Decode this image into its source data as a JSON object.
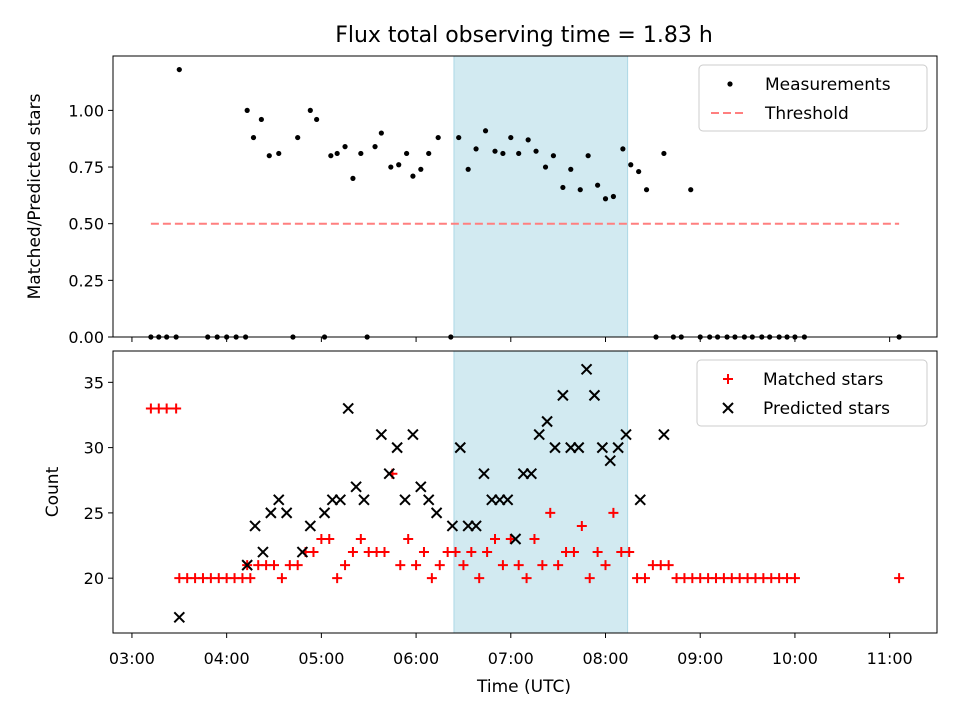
{
  "chart_data": {
    "title": "Flux total observing time = 1.83 h",
    "shaded_region": {
      "start": "06:24",
      "end": "08:14",
      "color": "#add8e6"
    },
    "x_axis": {
      "label": "Time (UTC)",
      "unit": "HH:MM UTC",
      "range": [
        "02:48",
        "11:30"
      ],
      "ticks": [
        "03:00",
        "04:00",
        "05:00",
        "06:00",
        "07:00",
        "08:00",
        "09:00",
        "10:00",
        "11:00"
      ]
    },
    "panels": [
      {
        "type": "scatter",
        "ylabel": "Matched/Predicted stars",
        "ylim": [
          0,
          1.24
        ],
        "yticks": [
          "0.00",
          "0.25",
          "0.50",
          "0.75",
          "1.00"
        ],
        "legend_position": "upper right",
        "legend": [
          {
            "label": "Measurements",
            "marker": "dot",
            "color": "#000000"
          },
          {
            "label": "Threshold",
            "marker": "dashed-line",
            "color": "#ff7f7f"
          }
        ],
        "threshold": {
          "label": "Threshold",
          "value": 0.5,
          "x_start": "03:12",
          "x_end": "11:06"
        },
        "series": [
          {
            "name": "Measurements",
            "color": "#000000",
            "points": [
              [
                "03:12",
                0
              ],
              [
                "03:17",
                0
              ],
              [
                "03:22",
                0
              ],
              [
                "03:28",
                0
              ],
              [
                "03:48",
                0
              ],
              [
                "03:54",
                0
              ],
              [
                "04:00",
                0
              ],
              [
                "04:06",
                0
              ],
              [
                "04:12",
                0
              ],
              [
                "03:30",
                1.18
              ],
              [
                "04:13",
                1.0
              ],
              [
                "04:17",
                0.88
              ],
              [
                "04:22",
                0.96
              ],
              [
                "04:27",
                0.8
              ],
              [
                "04:33",
                0.81
              ],
              [
                "04:42",
                0
              ],
              [
                "04:45",
                0.88
              ],
              [
                "04:53",
                1.0
              ],
              [
                "04:57",
                0.96
              ],
              [
                "05:02",
                0
              ],
              [
                "05:06",
                0.8
              ],
              [
                "05:10",
                0.81
              ],
              [
                "05:15",
                0.84
              ],
              [
                "05:20",
                0.7
              ],
              [
                "05:25",
                0.81
              ],
              [
                "05:29",
                0
              ],
              [
                "05:34",
                0.84
              ],
              [
                "05:38",
                0.9
              ],
              [
                "05:44",
                0.75
              ],
              [
                "05:49",
                0.76
              ],
              [
                "05:54",
                0.81
              ],
              [
                "05:58",
                0.71
              ],
              [
                "06:03",
                0.74
              ],
              [
                "06:08",
                0.81
              ],
              [
                "06:14",
                0.88
              ],
              [
                "06:22",
                0
              ],
              [
                "06:27",
                0.88
              ],
              [
                "06:33",
                0.74
              ],
              [
                "06:38",
                0.83
              ],
              [
                "06:44",
                0.91
              ],
              [
                "06:50",
                0.82
              ],
              [
                "06:55",
                0.81
              ],
              [
                "07:00",
                0.88
              ],
              [
                "07:05",
                0.81
              ],
              [
                "07:11",
                0.87
              ],
              [
                "07:16",
                0.82
              ],
              [
                "07:22",
                0.75
              ],
              [
                "07:27",
                0.8
              ],
              [
                "07:33",
                0.66
              ],
              [
                "07:38",
                0.74
              ],
              [
                "07:44",
                0.65
              ],
              [
                "07:49",
                0.8
              ],
              [
                "07:55",
                0.67
              ],
              [
                "08:00",
                0.61
              ],
              [
                "08:05",
                0.62
              ],
              [
                "08:11",
                0.83
              ],
              [
                "08:16",
                0.76
              ],
              [
                "08:21",
                0.73
              ],
              [
                "08:26",
                0.65
              ],
              [
                "08:32",
                0
              ],
              [
                "08:37",
                0.81
              ],
              [
                "08:43",
                0
              ],
              [
                "08:48",
                0
              ],
              [
                "08:54",
                0.65
              ],
              [
                "09:00",
                0
              ],
              [
                "09:06",
                0
              ],
              [
                "09:11",
                0
              ],
              [
                "09:17",
                0
              ],
              [
                "09:22",
                0
              ],
              [
                "09:28",
                0
              ],
              [
                "09:33",
                0
              ],
              [
                "09:39",
                0
              ],
              [
                "09:44",
                0
              ],
              [
                "09:50",
                0
              ],
              [
                "09:55",
                0
              ],
              [
                "10:00",
                0
              ],
              [
                "10:06",
                0
              ],
              [
                "11:06",
                0
              ]
            ]
          }
        ]
      },
      {
        "type": "scatter",
        "ylabel": "Count",
        "ylim": [
          15.8,
          37.4
        ],
        "yticks": [
          "20",
          "25",
          "30",
          "35"
        ],
        "legend_position": "upper right",
        "legend": [
          {
            "label": "Matched stars",
            "marker": "plus",
            "color": "#ff0000"
          },
          {
            "label": "Predicted stars",
            "marker": "x",
            "color": "#000000"
          }
        ],
        "series": [
          {
            "name": "Matched stars",
            "color": "#ff0000",
            "points": [
              [
                "03:12",
                33
              ],
              [
                "03:17",
                33
              ],
              [
                "03:22",
                33
              ],
              [
                "03:28",
                33
              ],
              [
                "03:30",
                20
              ],
              [
                "03:35",
                20
              ],
              [
                "03:40",
                20
              ],
              [
                "03:45",
                20
              ],
              [
                "03:50",
                20
              ],
              [
                "03:55",
                20
              ],
              [
                "04:00",
                20
              ],
              [
                "04:05",
                20
              ],
              [
                "04:10",
                20
              ],
              [
                "04:15",
                20
              ],
              [
                "04:13",
                21
              ],
              [
                "04:20",
                21
              ],
              [
                "04:25",
                21
              ],
              [
                "04:30",
                21
              ],
              [
                "04:35",
                20
              ],
              [
                "04:40",
                21
              ],
              [
                "04:45",
                21
              ],
              [
                "04:50",
                22
              ],
              [
                "04:55",
                22
              ],
              [
                "05:00",
                23
              ],
              [
                "05:05",
                23
              ],
              [
                "05:10",
                20
              ],
              [
                "05:15",
                21
              ],
              [
                "05:20",
                22
              ],
              [
                "05:25",
                23
              ],
              [
                "05:30",
                22
              ],
              [
                "05:35",
                22
              ],
              [
                "05:40",
                22
              ],
              [
                "05:45",
                28
              ],
              [
                "05:50",
                21
              ],
              [
                "05:55",
                23
              ],
              [
                "06:00",
                21
              ],
              [
                "06:05",
                22
              ],
              [
                "06:10",
                20
              ],
              [
                "06:15",
                21
              ],
              [
                "06:20",
                22
              ],
              [
                "06:25",
                22
              ],
              [
                "06:30",
                21
              ],
              [
                "06:35",
                22
              ],
              [
                "06:40",
                20
              ],
              [
                "06:45",
                22
              ],
              [
                "06:50",
                23
              ],
              [
                "06:55",
                21
              ],
              [
                "07:00",
                23
              ],
              [
                "07:05",
                21
              ],
              [
                "07:10",
                20
              ],
              [
                "07:15",
                23
              ],
              [
                "07:20",
                21
              ],
              [
                "07:25",
                25
              ],
              [
                "07:30",
                21
              ],
              [
                "07:35",
                22
              ],
              [
                "07:40",
                22
              ],
              [
                "07:45",
                24
              ],
              [
                "07:50",
                20
              ],
              [
                "07:55",
                22
              ],
              [
                "08:00",
                21
              ],
              [
                "08:05",
                25
              ],
              [
                "08:10",
                22
              ],
              [
                "08:15",
                22
              ],
              [
                "08:20",
                20
              ],
              [
                "08:25",
                20
              ],
              [
                "08:30",
                21
              ],
              [
                "08:35",
                21
              ],
              [
                "08:40",
                21
              ],
              [
                "08:45",
                20
              ],
              [
                "08:50",
                20
              ],
              [
                "08:55",
                20
              ],
              [
                "09:00",
                20
              ],
              [
                "09:05",
                20
              ],
              [
                "09:10",
                20
              ],
              [
                "09:15",
                20
              ],
              [
                "09:20",
                20
              ],
              [
                "09:25",
                20
              ],
              [
                "09:30",
                20
              ],
              [
                "09:35",
                20
              ],
              [
                "09:40",
                20
              ],
              [
                "09:45",
                20
              ],
              [
                "09:50",
                20
              ],
              [
                "09:55",
                20
              ],
              [
                "10:00",
                20
              ],
              [
                "11:06",
                20
              ]
            ]
          },
          {
            "name": "Predicted stars",
            "color": "#000000",
            "points": [
              [
                "03:30",
                17
              ],
              [
                "04:13",
                21
              ],
              [
                "04:18",
                24
              ],
              [
                "04:23",
                22
              ],
              [
                "04:28",
                25
              ],
              [
                "04:33",
                26
              ],
              [
                "04:38",
                25
              ],
              [
                "04:48",
                22
              ],
              [
                "04:53",
                24
              ],
              [
                "05:02",
                25
              ],
              [
                "05:07",
                26
              ],
              [
                "05:12",
                26
              ],
              [
                "05:17",
                33
              ],
              [
                "05:22",
                27
              ],
              [
                "05:27",
                26
              ],
              [
                "05:38",
                31
              ],
              [
                "05:43",
                28
              ],
              [
                "05:48",
                30
              ],
              [
                "05:53",
                26
              ],
              [
                "05:58",
                31
              ],
              [
                "06:03",
                27
              ],
              [
                "06:08",
                26
              ],
              [
                "06:13",
                25
              ],
              [
                "06:23",
                24
              ],
              [
                "06:28",
                30
              ],
              [
                "06:33",
                24
              ],
              [
                "06:38",
                24
              ],
              [
                "06:43",
                28
              ],
              [
                "06:48",
                26
              ],
              [
                "06:53",
                26
              ],
              [
                "06:58",
                26
              ],
              [
                "07:03",
                23
              ],
              [
                "07:08",
                28
              ],
              [
                "07:13",
                28
              ],
              [
                "07:18",
                31
              ],
              [
                "07:23",
                32
              ],
              [
                "07:28",
                30
              ],
              [
                "07:33",
                34
              ],
              [
                "07:38",
                30
              ],
              [
                "07:43",
                30
              ],
              [
                "07:48",
                36
              ],
              [
                "07:53",
                34
              ],
              [
                "07:58",
                30
              ],
              [
                "08:03",
                29
              ],
              [
                "08:08",
                30
              ],
              [
                "08:13",
                31
              ],
              [
                "08:22",
                26
              ],
              [
                "08:37",
                31
              ]
            ]
          }
        ]
      }
    ]
  }
}
